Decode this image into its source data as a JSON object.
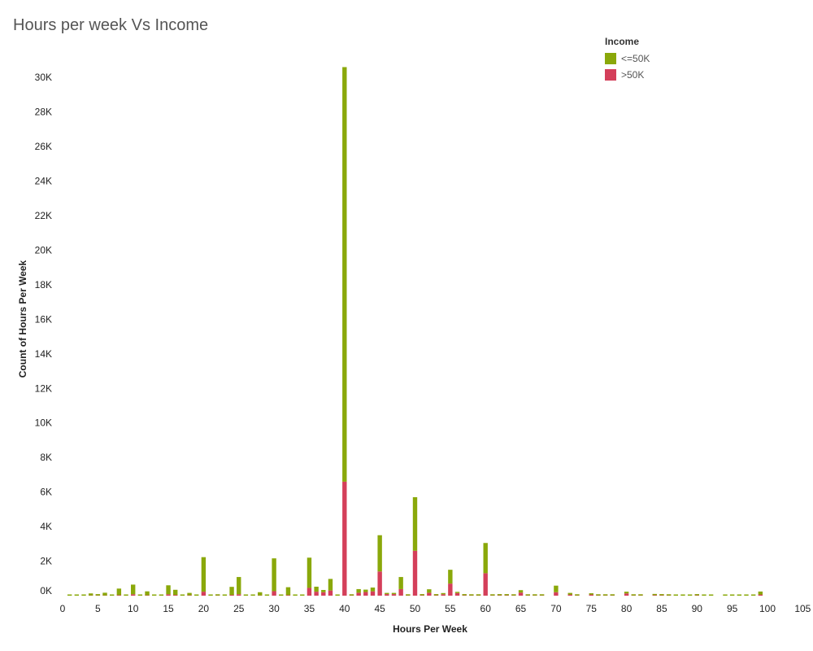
{
  "chart_data": {
    "type": "bar",
    "stacked": true,
    "title": "Hours per week Vs Income",
    "xlabel": "Hours Per Week",
    "ylabel": "Count of Hours Per Week",
    "xlim": [
      0,
      106
    ],
    "ylim": [
      0,
      31000
    ],
    "x_ticks": [
      "0",
      "5",
      "10",
      "15",
      "20",
      "25",
      "30",
      "35",
      "40",
      "45",
      "50",
      "55",
      "60",
      "65",
      "70",
      "75",
      "80",
      "85",
      "90",
      "95",
      "100",
      "105"
    ],
    "y_ticks": [
      "0K",
      "2K",
      "4K",
      "6K",
      "8K",
      "10K",
      "12K",
      "14K",
      "16K",
      "18K",
      "20K",
      "22K",
      "24K",
      "26K",
      "28K",
      "30K"
    ],
    "legend": {
      "title": "Income",
      "position": "top-right"
    },
    "x": [
      1,
      2,
      3,
      4,
      5,
      6,
      7,
      8,
      9,
      10,
      11,
      12,
      13,
      14,
      15,
      16,
      17,
      18,
      19,
      20,
      21,
      22,
      23,
      24,
      25,
      26,
      27,
      28,
      29,
      30,
      31,
      32,
      33,
      34,
      35,
      36,
      37,
      38,
      39,
      40,
      41,
      42,
      43,
      44,
      45,
      46,
      47,
      48,
      49,
      50,
      51,
      52,
      53,
      54,
      55,
      56,
      57,
      58,
      59,
      60,
      61,
      62,
      63,
      64,
      65,
      66,
      67,
      68,
      70,
      72,
      73,
      75,
      76,
      77,
      78,
      80,
      81,
      82,
      84,
      85,
      86,
      87,
      88,
      89,
      90,
      91,
      92,
      94,
      95,
      96,
      97,
      98,
      99
    ],
    "series": [
      {
        "name": "<=50K",
        "color": "#8aa80a",
        "values": [
          20,
          50,
          60,
          120,
          80,
          160,
          70,
          380,
          40,
          560,
          20,
          230,
          40,
          30,
          520,
          300,
          40,
          140,
          20,
          2000,
          40,
          70,
          30,
          470,
          1000,
          30,
          40,
          190,
          20,
          1900,
          20,
          460,
          30,
          30,
          1750,
          290,
          130,
          670,
          20,
          24000,
          30,
          210,
          140,
          220,
          2100,
          70,
          60,
          700,
          40,
          3100,
          50,
          200,
          20,
          50,
          800,
          60,
          50,
          30,
          20,
          1750,
          20,
          30,
          40,
          50,
          140,
          30,
          30,
          20,
          380,
          100,
          20,
          80,
          20,
          20,
          20,
          100,
          20,
          20,
          40,
          20,
          20,
          10,
          10,
          10,
          20,
          10,
          10,
          10,
          10,
          10,
          10,
          10,
          180
        ]
      },
      {
        "name": ">50K",
        "color": "#d43f5a",
        "values": [
          0,
          0,
          0,
          10,
          10,
          10,
          0,
          30,
          0,
          80,
          0,
          20,
          0,
          0,
          80,
          40,
          0,
          20,
          0,
          230,
          0,
          10,
          0,
          40,
          80,
          0,
          0,
          10,
          0,
          260,
          0,
          30,
          0,
          0,
          450,
          230,
          200,
          300,
          0,
          6600,
          10,
          170,
          210,
          250,
          1400,
          90,
          90,
          380,
          10,
          2600,
          20,
          170,
          20,
          80,
          700,
          150,
          20,
          10,
          10,
          1300,
          10,
          20,
          20,
          10,
          180,
          10,
          10,
          10,
          200,
          60,
          10,
          60,
          10,
          10,
          10,
          130,
          10,
          10,
          30,
          20,
          10,
          0,
          0,
          0,
          20,
          0,
          0,
          0,
          0,
          0,
          0,
          0,
          60
        ]
      }
    ]
  }
}
